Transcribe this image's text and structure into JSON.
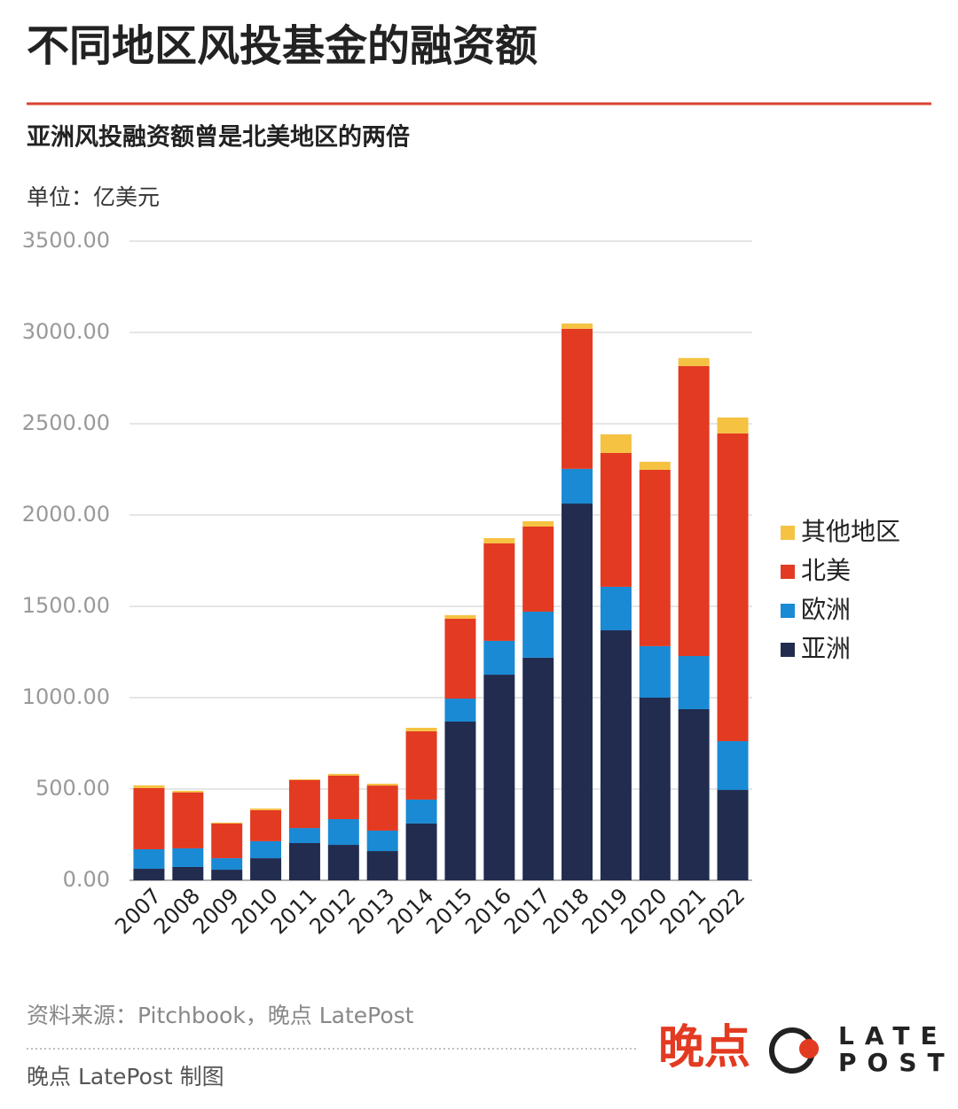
{
  "chart_data": {
    "type": "stacked_bar",
    "title": "不同地区风投基金的融资额",
    "subtitle": "亚洲风投融资额曾是北美地区的两倍",
    "unit_label": "单位：亿美元",
    "categories": [
      "2007",
      "2008",
      "2009",
      "2010",
      "2011",
      "2012",
      "2013",
      "2014",
      "2015",
      "2016",
      "2017",
      "2018",
      "2019",
      "2020",
      "2021",
      "2022"
    ],
    "series": [
      {
        "name": "亚洲",
        "color": "#222c4f",
        "values": [
          63,
          73,
          58,
          121,
          204,
          194,
          160,
          311,
          869,
          1126,
          1219,
          2063,
          1369,
          1000,
          937,
          495
        ]
      },
      {
        "name": "欧洲",
        "color": "#1a8ad4",
        "values": [
          107,
          102,
          63,
          93,
          82,
          141,
          112,
          131,
          126,
          185,
          252,
          190,
          238,
          282,
          291,
          267
        ]
      },
      {
        "name": "北美",
        "color": "#e33a22",
        "values": [
          335,
          306,
          190,
          170,
          263,
          238,
          247,
          374,
          437,
          534,
          466,
          767,
          733,
          966,
          1588,
          1685
        ]
      },
      {
        "name": "其他地区",
        "color": "#f5c242",
        "values": [
          15,
          9,
          5,
          9,
          4,
          10,
          10,
          19,
          20,
          29,
          29,
          29,
          102,
          44,
          44,
          87
        ]
      }
    ],
    "ylim": [
      0,
      3500
    ],
    "yticks": [
      {
        "value": 0,
        "label": "0.00"
      },
      {
        "value": 500,
        "label": "500.00"
      },
      {
        "value": 1000,
        "label": "1000.00"
      },
      {
        "value": 1500,
        "label": "1500.00"
      },
      {
        "value": 2000,
        "label": "2000.00"
      },
      {
        "value": 2500,
        "label": "2500.00"
      },
      {
        "value": 3000,
        "label": "3000.00"
      },
      {
        "value": 3500,
        "label": "3500.00"
      }
    ],
    "grid": true,
    "legend": "right"
  },
  "footer": {
    "source": "资料来源：Pitchbook，晚点 LatePost",
    "credit": "晚点 LatePost 制图",
    "logo_cn": "晚点",
    "logo_en_top": "LATE",
    "logo_en_bottom": "POST"
  }
}
